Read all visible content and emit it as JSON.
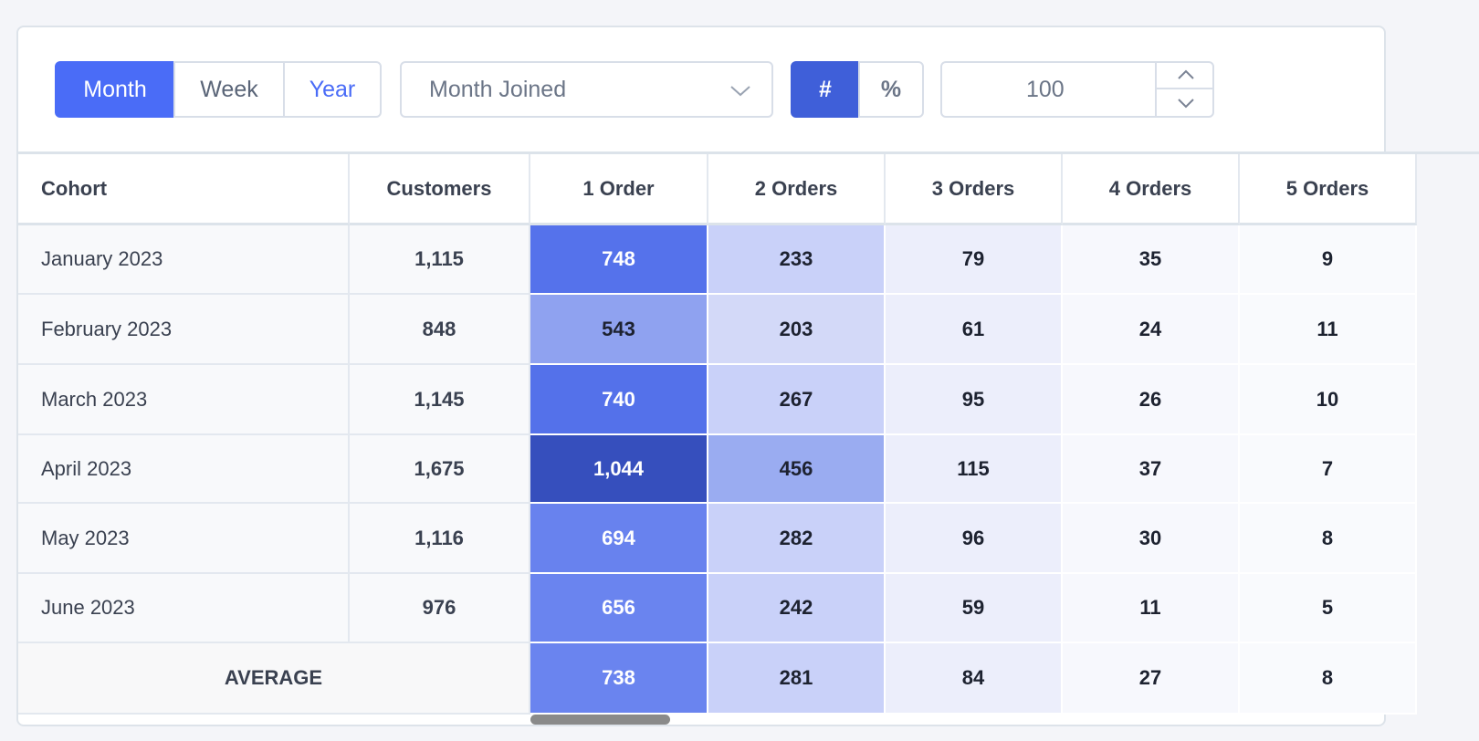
{
  "toolbar": {
    "period_buttons": [
      "Month",
      "Week",
      "Year"
    ],
    "group_by": "Month Joined",
    "mode_buttons": [
      "#",
      "%"
    ],
    "limit": "100"
  },
  "table": {
    "columns": [
      "Cohort",
      "Customers",
      "1 Order",
      "2 Orders",
      "3 Orders",
      "4 Orders",
      "5 Orders"
    ],
    "rows": [
      [
        "January 2023",
        "1,115",
        "748",
        "233",
        "79",
        "35",
        "9"
      ],
      [
        "February 2023",
        "848",
        "543",
        "203",
        "61",
        "24",
        "11"
      ],
      [
        "March 2023",
        "1,145",
        "740",
        "267",
        "95",
        "26",
        "10"
      ],
      [
        "April 2023",
        "1,675",
        "1,044",
        "456",
        "115",
        "37",
        "7"
      ],
      [
        "May 2023",
        "1,116",
        "694",
        "282",
        "96",
        "30",
        "8"
      ],
      [
        "June 2023",
        "976",
        "656",
        "242",
        "59",
        "11",
        "5"
      ]
    ],
    "footer": {
      "label": "AVERAGE",
      "values": [
        "738",
        "281",
        "84",
        "27",
        "8"
      ]
    }
  }
}
